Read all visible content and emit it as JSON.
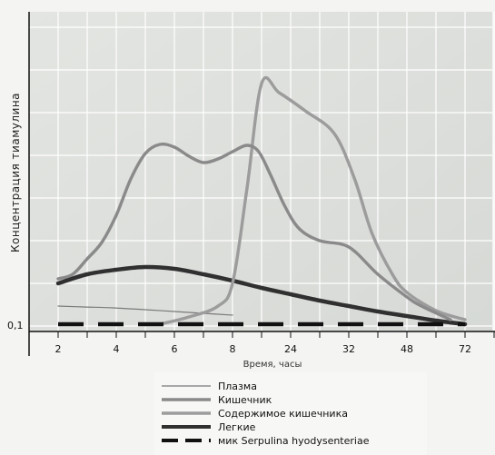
{
  "chart_data": {
    "type": "line",
    "title": "",
    "xlabel": "Время, часы",
    "ylabel": "Концентрация тиамулина",
    "x_ticks": [
      "2",
      "4",
      "6",
      "8",
      "24",
      "32",
      "48",
      "72"
    ],
    "y_ticks": [
      "0,1"
    ],
    "grid": true,
    "legend_position": "bottom",
    "series": [
      {
        "name": "Плазма",
        "color": "#7a7a7a",
        "style": "thin",
        "points": [
          [
            1.0,
            0.2
          ],
          [
            1.9,
            0.19
          ],
          [
            2.9,
            0.18
          ],
          [
            4.0,
            0.16
          ],
          [
            5.0,
            0.14
          ],
          [
            6.0,
            0.12
          ],
          [
            7.0,
            0.1
          ]
        ]
      },
      {
        "name": "Кишечник",
        "color": "#8a8a8a",
        "style": "medium",
        "points": [
          [
            1.0,
            0.5
          ],
          [
            1.5,
            0.55
          ],
          [
            2.0,
            0.72
          ],
          [
            2.5,
            0.9
          ],
          [
            3.0,
            1.2
          ],
          [
            3.5,
            1.6
          ],
          [
            4.0,
            1.88
          ],
          [
            4.5,
            1.98
          ],
          [
            5.0,
            1.95
          ],
          [
            5.5,
            1.85
          ],
          [
            6.0,
            1.78
          ],
          [
            6.5,
            1.82
          ],
          [
            7.0,
            1.9
          ],
          [
            7.5,
            1.97
          ],
          [
            7.9,
            1.9
          ],
          [
            8.3,
            1.65
          ],
          [
            8.8,
            1.3
          ],
          [
            9.3,
            1.05
          ],
          [
            10.0,
            0.92
          ],
          [
            11.0,
            0.85
          ],
          [
            12.0,
            0.55
          ],
          [
            13.0,
            0.3
          ],
          [
            13.5,
            0.2
          ],
          [
            14.5,
            0.05
          ]
        ]
      },
      {
        "name": "Содержимое кишечника",
        "color": "#9c9c9c",
        "style": "medium",
        "points": [
          [
            4.5,
            0.0
          ],
          [
            5.5,
            0.08
          ],
          [
            6.5,
            0.2
          ],
          [
            7.0,
            0.45
          ],
          [
            7.5,
            1.5
          ],
          [
            8.0,
            2.65
          ],
          [
            8.6,
            2.55
          ],
          [
            9.5,
            2.35
          ],
          [
            10.5,
            2.1
          ],
          [
            11.2,
            1.6
          ],
          [
            11.8,
            1.0
          ],
          [
            12.5,
            0.55
          ],
          [
            13.0,
            0.35
          ],
          [
            14.0,
            0.15
          ],
          [
            15.0,
            0.05
          ]
        ]
      },
      {
        "name": "Легкие",
        "color": "#303030",
        "style": "thick",
        "points": [
          [
            1.0,
            0.45
          ],
          [
            2.0,
            0.55
          ],
          [
            3.0,
            0.6
          ],
          [
            4.0,
            0.63
          ],
          [
            5.0,
            0.61
          ],
          [
            6.0,
            0.55
          ],
          [
            7.0,
            0.48
          ],
          [
            8.0,
            0.4
          ],
          [
            9.0,
            0.33
          ],
          [
            10.0,
            0.26
          ],
          [
            11.0,
            0.2
          ],
          [
            12.0,
            0.14
          ],
          [
            13.0,
            0.09
          ],
          [
            14.0,
            0.04
          ],
          [
            15.0,
            0.0
          ]
        ]
      },
      {
        "name": "мик Serpulina hyodysenteriae",
        "color": "#111111",
        "style": "dashed",
        "points": [
          [
            1.0,
            0.0
          ],
          [
            15.0,
            0.0
          ]
        ]
      }
    ]
  }
}
